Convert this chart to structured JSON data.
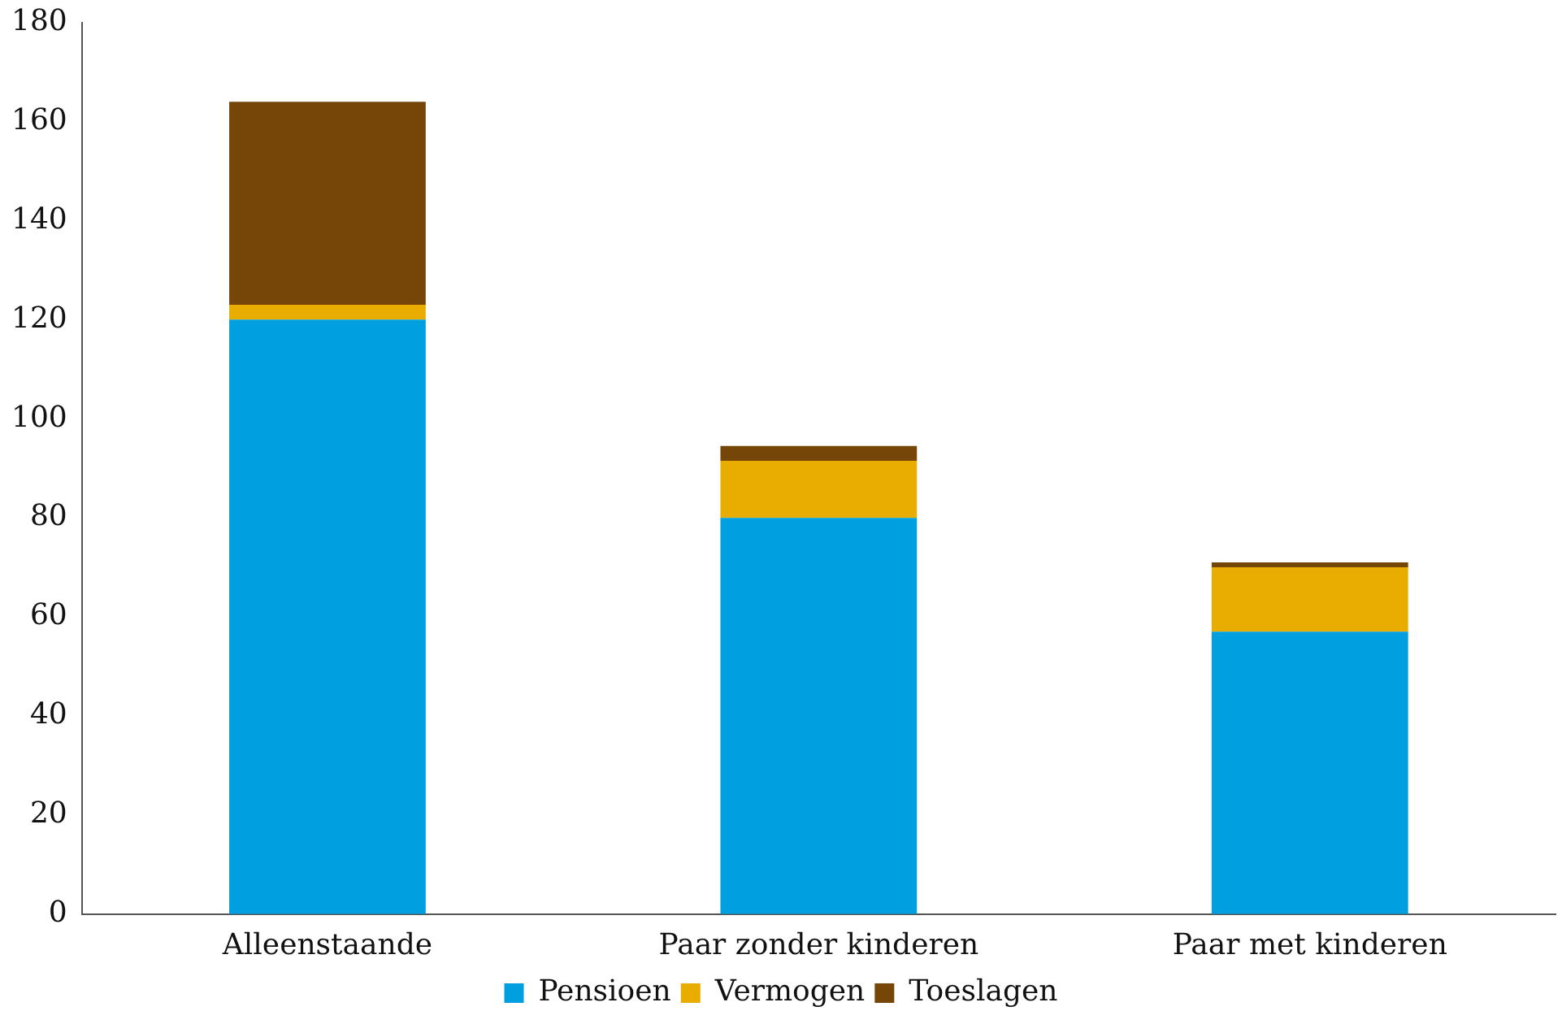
{
  "chart_data": {
    "type": "bar",
    "stacked": true,
    "categories": [
      "Alleenstaande",
      "Paar zonder kinderen",
      "Paar met kinderen"
    ],
    "series": [
      {
        "name": "Pensioen",
        "color": "#009fe0",
        "values": [
          120,
          80,
          57
        ]
      },
      {
        "name": "Vermogen",
        "color": "#e9ac00",
        "values": [
          3,
          11.5,
          13
        ]
      },
      {
        "name": "Toeslagen",
        "color": "#754608",
        "values": [
          41,
          3,
          1
        ]
      }
    ],
    "ylim": [
      0,
      180
    ],
    "yticks": [
      0,
      20,
      40,
      60,
      80,
      100,
      120,
      140,
      160,
      180
    ],
    "grid": false,
    "legend": "bottom"
  }
}
